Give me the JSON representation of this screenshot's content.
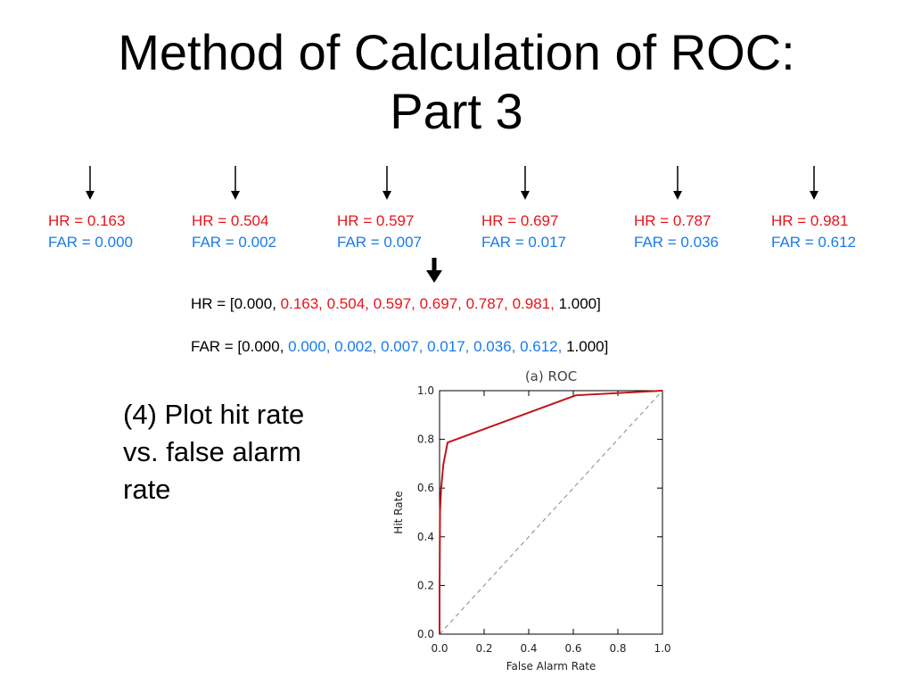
{
  "slide": {
    "title_line1": "Method of Calculation of ROC:",
    "title_line2": "Part 3",
    "step_text": "(4) Plot hit rate vs. false alarm rate"
  },
  "thresholds": [
    {
      "hr": "HR = 0.163",
      "far": "FAR = 0.000"
    },
    {
      "hr": "HR = 0.504",
      "far": "FAR = 0.002"
    },
    {
      "hr": "HR = 0.597",
      "far": "FAR = 0.007"
    },
    {
      "hr": "HR = 0.697",
      "far": "FAR = 0.017"
    },
    {
      "hr": "HR = 0.787",
      "far": "FAR = 0.036"
    },
    {
      "hr": "HR = 0.981",
      "far": "FAR = 0.612"
    }
  ],
  "arrays": {
    "hr": {
      "prefix": "HR = [0.000, ",
      "middle": "0.163, 0.504, 0.597, 0.697, 0.787, 0.981, ",
      "suffix": "1.000]"
    },
    "far": {
      "prefix": "FAR = [0.000, ",
      "middle": "0.000, 0.002, 0.007, 0.017, 0.036, 0.612, ",
      "suffix": "1.000]"
    }
  },
  "colors": {
    "hr": "#e8141b",
    "far": "#1a7be8",
    "roc_line": "#c0141b",
    "diagonal": "#888888"
  },
  "chart_data": {
    "type": "line",
    "title": "(a) ROC",
    "xlabel": "False Alarm Rate",
    "ylabel": "Hit Rate",
    "xlim": [
      0,
      1
    ],
    "ylim": [
      0,
      1
    ],
    "xticks": [
      "0.0",
      "0.2",
      "0.4",
      "0.6",
      "0.8",
      "1.0"
    ],
    "yticks": [
      "0.0",
      "0.2",
      "0.4",
      "0.6",
      "0.8",
      "1.0"
    ],
    "grid": false,
    "series": [
      {
        "x": [
          0.0,
          0.0,
          0.002,
          0.007,
          0.017,
          0.036,
          0.612,
          1.0
        ],
        "y": [
          0.0,
          0.163,
          0.504,
          0.597,
          0.697,
          0.787,
          0.981,
          1.0
        ]
      }
    ],
    "reference_line": {
      "x": [
        0,
        1
      ],
      "y": [
        0,
        1
      ],
      "style": "dashed"
    }
  }
}
